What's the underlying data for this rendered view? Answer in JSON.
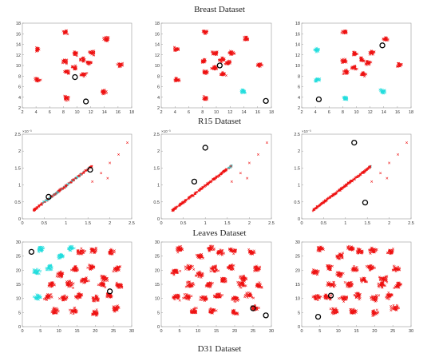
{
  "figure": {
    "row_titles": [
      "Breast Dataset",
      "R15 Dataset",
      "Leaves Dataset",
      "D31 Dataset"
    ],
    "colors": {
      "cluster_a": "#ee1111",
      "cluster_b": "#22dddd",
      "centroid": "#000000"
    }
  },
  "chart_data": [
    {
      "type": "scatter",
      "row": 0,
      "col": 0,
      "xlim": [
        2,
        18
      ],
      "ylim": [
        2,
        18
      ],
      "xticks": [
        2,
        4,
        6,
        8,
        10,
        12,
        14,
        16,
        18
      ],
      "yticks": [
        2,
        4,
        6,
        8,
        10,
        12,
        14,
        16,
        18
      ],
      "clusters": [
        {
          "x": 4.2,
          "y": 13,
          "color": "red"
        },
        {
          "x": 8.3,
          "y": 16.3,
          "color": "red"
        },
        {
          "x": 14.3,
          "y": 15,
          "color": "red"
        },
        {
          "x": 4.2,
          "y": 7.3,
          "color": "red"
        },
        {
          "x": 8.4,
          "y": 3.8,
          "color": "red"
        },
        {
          "x": 13.9,
          "y": 5.1,
          "color": "red"
        },
        {
          "x": 16.3,
          "y": 10.1,
          "color": "red"
        },
        {
          "x": 8.2,
          "y": 10.8,
          "color": "red"
        },
        {
          "x": 9.8,
          "y": 12.3,
          "color": "red"
        },
        {
          "x": 11.7,
          "y": 10.5,
          "color": "red"
        },
        {
          "x": 11,
          "y": 8.3,
          "color": "red"
        },
        {
          "x": 8.5,
          "y": 8.8,
          "color": "red"
        },
        {
          "x": 10.8,
          "y": 11.1,
          "color": "red"
        },
        {
          "x": 9.7,
          "y": 9.6,
          "color": "red"
        },
        {
          "x": 12.2,
          "y": 12.4,
          "color": "red"
        }
      ],
      "centroids": [
        {
          "x": 9.7,
          "y": 7.8
        },
        {
          "x": 11.3,
          "y": 3.2
        }
      ]
    },
    {
      "type": "scatter",
      "row": 0,
      "col": 1,
      "xlim": [
        2,
        18
      ],
      "ylim": [
        2,
        18
      ],
      "xticks": [
        2,
        4,
        6,
        8,
        10,
        12,
        14,
        16,
        18
      ],
      "yticks": [
        2,
        4,
        6,
        8,
        10,
        12,
        14,
        16,
        18
      ],
      "clusters": [
        {
          "x": 4.2,
          "y": 13,
          "color": "red"
        },
        {
          "x": 8.3,
          "y": 16.3,
          "color": "red"
        },
        {
          "x": 14.3,
          "y": 15,
          "color": "red"
        },
        {
          "x": 4.2,
          "y": 7.3,
          "color": "red"
        },
        {
          "x": 8.4,
          "y": 3.8,
          "color": "red"
        },
        {
          "x": 13.9,
          "y": 5.1,
          "color": "cyan"
        },
        {
          "x": 16.3,
          "y": 10.1,
          "color": "red"
        },
        {
          "x": 8.2,
          "y": 10.8,
          "color": "red"
        },
        {
          "x": 9.8,
          "y": 12.3,
          "color": "red"
        },
        {
          "x": 11.7,
          "y": 10.5,
          "color": "red"
        },
        {
          "x": 11,
          "y": 8.3,
          "color": "red"
        },
        {
          "x": 8.5,
          "y": 8.8,
          "color": "red"
        },
        {
          "x": 10.8,
          "y": 11.1,
          "color": "red"
        },
        {
          "x": 9.7,
          "y": 9.6,
          "color": "red"
        },
        {
          "x": 12.2,
          "y": 12.4,
          "color": "red"
        }
      ],
      "centroids": [
        {
          "x": 10.5,
          "y": 10
        },
        {
          "x": 17.2,
          "y": 3.3
        }
      ]
    },
    {
      "type": "scatter",
      "row": 0,
      "col": 2,
      "xlim": [
        2,
        18
      ],
      "ylim": [
        2,
        18
      ],
      "xticks": [
        2,
        4,
        6,
        8,
        10,
        12,
        14,
        16,
        18
      ],
      "yticks": [
        2,
        4,
        6,
        8,
        10,
        12,
        14,
        16,
        18
      ],
      "clusters": [
        {
          "x": 4.2,
          "y": 13,
          "color": "cyan"
        },
        {
          "x": 8.3,
          "y": 16.3,
          "color": "red"
        },
        {
          "x": 14.3,
          "y": 15,
          "color": "red"
        },
        {
          "x": 4.2,
          "y": 7.3,
          "color": "cyan"
        },
        {
          "x": 8.4,
          "y": 3.8,
          "color": "cyan"
        },
        {
          "x": 13.9,
          "y": 5.1,
          "color": "cyan"
        },
        {
          "x": 16.3,
          "y": 10.1,
          "color": "red"
        },
        {
          "x": 8.2,
          "y": 10.8,
          "color": "red"
        },
        {
          "x": 9.8,
          "y": 12.3,
          "color": "red"
        },
        {
          "x": 11.7,
          "y": 10.5,
          "color": "red"
        },
        {
          "x": 11,
          "y": 8.3,
          "color": "red"
        },
        {
          "x": 8.5,
          "y": 8.8,
          "color": "red"
        },
        {
          "x": 10.8,
          "y": 11.1,
          "color": "red"
        },
        {
          "x": 9.7,
          "y": 9.6,
          "color": "red"
        },
        {
          "x": 12.2,
          "y": 12.4,
          "color": "red"
        }
      ],
      "centroids": [
        {
          "x": 13.8,
          "y": 13.8
        },
        {
          "x": 4.5,
          "y": 3.6
        }
      ]
    },
    {
      "type": "scatter",
      "row": 1,
      "col": 0,
      "xlim": [
        0,
        2.5
      ],
      "ylim": [
        0,
        2.5
      ],
      "xticks": [
        0,
        0.5,
        1,
        1.5,
        2,
        2.5
      ],
      "yticks": [
        0,
        0.5,
        1,
        1.5,
        2,
        2.5
      ],
      "y_exponent": "×10⁻³",
      "diagonal": {
        "x0": 0.25,
        "x1": 1.6,
        "slope": 0.98,
        "color": "red"
      },
      "cyan_band": {
        "x0": 0.45,
        "x1": 1.55
      },
      "outliers": [
        {
          "x": 1.6,
          "y": 1.1
        },
        {
          "x": 1.8,
          "y": 1.35
        },
        {
          "x": 2.0,
          "y": 1.65
        },
        {
          "x": 2.2,
          "y": 1.9
        },
        {
          "x": 2.4,
          "y": 2.25
        },
        {
          "x": 1.95,
          "y": 1.2
        }
      ],
      "centroids": [
        {
          "x": 0.6,
          "y": 0.65
        },
        {
          "x": 1.55,
          "y": 1.45
        }
      ]
    },
    {
      "type": "scatter",
      "row": 1,
      "col": 1,
      "xlim": [
        0,
        2.5
      ],
      "ylim": [
        0,
        2.5
      ],
      "xticks": [
        0,
        0.5,
        1,
        1.5,
        2,
        2.5
      ],
      "yticks": [
        0,
        0.5,
        1,
        1.5,
        2,
        2.5
      ],
      "y_exponent": "×10⁻³",
      "diagonal": {
        "x0": 0.25,
        "x1": 1.6,
        "slope": 0.98,
        "color": "red"
      },
      "cyan_band": {
        "x0": 1.5,
        "x1": 1.62
      },
      "outliers": [
        {
          "x": 1.6,
          "y": 1.1
        },
        {
          "x": 1.8,
          "y": 1.35
        },
        {
          "x": 2.0,
          "y": 1.65
        },
        {
          "x": 2.2,
          "y": 1.9
        },
        {
          "x": 2.4,
          "y": 2.25
        },
        {
          "x": 1.95,
          "y": 1.2
        }
      ],
      "centroids": [
        {
          "x": 1.0,
          "y": 2.1
        },
        {
          "x": 0.75,
          "y": 1.1
        }
      ]
    },
    {
      "type": "scatter",
      "row": 1,
      "col": 2,
      "xlim": [
        0,
        2.5
      ],
      "ylim": [
        0,
        2.5
      ],
      "xticks": [
        0,
        0.5,
        1,
        1.5,
        2,
        2.5
      ],
      "yticks": [
        0,
        0.5,
        1,
        1.5,
        2,
        2.5
      ],
      "y_exponent": "×10⁻³",
      "diagonal": {
        "x0": 0.25,
        "x1": 1.6,
        "slope": 0.98,
        "color": "red"
      },
      "cyan_band": {
        "x0": 1.5,
        "x1": 1.62
      },
      "outliers": [
        {
          "x": 1.6,
          "y": 1.1
        },
        {
          "x": 1.8,
          "y": 1.35
        },
        {
          "x": 2.0,
          "y": 1.65
        },
        {
          "x": 2.2,
          "y": 1.9
        },
        {
          "x": 2.4,
          "y": 2.25
        },
        {
          "x": 1.95,
          "y": 1.2
        }
      ],
      "centroids": [
        {
          "x": 1.2,
          "y": 2.25
        },
        {
          "x": 1.45,
          "y": 0.48
        }
      ]
    },
    {
      "type": "scatter",
      "row": 2,
      "col": 0,
      "xlim": [
        0,
        30
      ],
      "ylim": [
        0,
        30
      ],
      "xticks": [
        0,
        5,
        10,
        15,
        20,
        25,
        30
      ],
      "yticks": [
        0,
        5,
        10,
        15,
        20,
        25,
        30
      ],
      "clusters": [
        {
          "x": 5,
          "y": 27.5,
          "color": "cyan"
        },
        {
          "x": 10.5,
          "y": 25,
          "color": "cyan"
        },
        {
          "x": 13.5,
          "y": 27.8,
          "color": "cyan"
        },
        {
          "x": 7.5,
          "y": 21,
          "color": "cyan"
        },
        {
          "x": 3.8,
          "y": 19.5,
          "color": "cyan"
        },
        {
          "x": 4.2,
          "y": 10.5,
          "color": "cyan"
        },
        {
          "x": 16,
          "y": 26.5,
          "color": "red"
        },
        {
          "x": 19.5,
          "y": 27,
          "color": "red"
        },
        {
          "x": 24.5,
          "y": 26.5,
          "color": "red"
        },
        {
          "x": 10.5,
          "y": 18.5,
          "color": "red"
        },
        {
          "x": 14.5,
          "y": 20.5,
          "color": "red"
        },
        {
          "x": 19,
          "y": 21,
          "color": "red"
        },
        {
          "x": 26,
          "y": 20.5,
          "color": "red"
        },
        {
          "x": 8,
          "y": 15,
          "color": "red"
        },
        {
          "x": 13,
          "y": 15,
          "color": "red"
        },
        {
          "x": 17,
          "y": 16.5,
          "color": "red"
        },
        {
          "x": 22.5,
          "y": 17,
          "color": "red"
        },
        {
          "x": 26.5,
          "y": 14.5,
          "color": "red"
        },
        {
          "x": 7,
          "y": 10.5,
          "color": "red"
        },
        {
          "x": 11.5,
          "y": 10,
          "color": "red"
        },
        {
          "x": 15.5,
          "y": 11,
          "color": "red"
        },
        {
          "x": 20,
          "y": 10,
          "color": "red"
        },
        {
          "x": 24,
          "y": 11,
          "color": "red"
        },
        {
          "x": 9,
          "y": 5.5,
          "color": "red"
        },
        {
          "x": 14,
          "y": 5.5,
          "color": "red"
        },
        {
          "x": 20,
          "y": 5,
          "color": "red"
        },
        {
          "x": 25.5,
          "y": 6.5,
          "color": "red"
        },
        {
          "x": 22,
          "y": 15,
          "color": "red"
        }
      ],
      "centroids": [
        {
          "x": 2.5,
          "y": 26.5
        },
        {
          "x": 24,
          "y": 12.5
        }
      ]
    },
    {
      "type": "scatter",
      "row": 2,
      "col": 1,
      "xlim": [
        0,
        30
      ],
      "ylim": [
        0,
        30
      ],
      "xticks": [
        0,
        5,
        10,
        15,
        20,
        25,
        30
      ],
      "yticks": [
        0,
        5,
        10,
        15,
        20,
        25,
        30
      ],
      "clusters": [
        {
          "x": 5,
          "y": 27.5,
          "color": "red"
        },
        {
          "x": 10.5,
          "y": 25,
          "color": "red"
        },
        {
          "x": 13.5,
          "y": 27.8,
          "color": "red"
        },
        {
          "x": 7.5,
          "y": 21,
          "color": "red"
        },
        {
          "x": 3.8,
          "y": 19.5,
          "color": "red"
        },
        {
          "x": 4.2,
          "y": 10.5,
          "color": "red"
        },
        {
          "x": 16,
          "y": 26.5,
          "color": "red"
        },
        {
          "x": 19.5,
          "y": 27,
          "color": "red"
        },
        {
          "x": 24.5,
          "y": 26.5,
          "color": "red"
        },
        {
          "x": 10.5,
          "y": 18.5,
          "color": "red"
        },
        {
          "x": 14.5,
          "y": 20.5,
          "color": "red"
        },
        {
          "x": 19,
          "y": 21,
          "color": "red"
        },
        {
          "x": 26,
          "y": 20.5,
          "color": "red"
        },
        {
          "x": 8,
          "y": 15,
          "color": "red"
        },
        {
          "x": 13,
          "y": 15,
          "color": "red"
        },
        {
          "x": 17,
          "y": 16.5,
          "color": "red"
        },
        {
          "x": 22.5,
          "y": 17,
          "color": "red"
        },
        {
          "x": 26.5,
          "y": 14.5,
          "color": "red"
        },
        {
          "x": 7,
          "y": 10.5,
          "color": "red"
        },
        {
          "x": 11.5,
          "y": 10,
          "color": "red"
        },
        {
          "x": 15.5,
          "y": 11,
          "color": "red"
        },
        {
          "x": 20,
          "y": 10,
          "color": "red"
        },
        {
          "x": 24,
          "y": 11,
          "color": "red"
        },
        {
          "x": 9,
          "y": 5.5,
          "color": "red"
        },
        {
          "x": 14,
          "y": 5.5,
          "color": "red"
        },
        {
          "x": 20,
          "y": 5,
          "color": "red"
        },
        {
          "x": 25.5,
          "y": 6.5,
          "color": "red"
        },
        {
          "x": 22,
          "y": 15,
          "color": "red"
        }
      ],
      "centroids": [
        {
          "x": 25,
          "y": 6.5
        },
        {
          "x": 28.5,
          "y": 4
        }
      ]
    },
    {
      "type": "scatter",
      "row": 2,
      "col": 2,
      "xlim": [
        0,
        30
      ],
      "ylim": [
        0,
        30
      ],
      "xticks": [
        0,
        5,
        10,
        15,
        20,
        25,
        30
      ],
      "yticks": [
        0,
        5,
        10,
        15,
        20,
        25,
        30
      ],
      "clusters": [
        {
          "x": 5,
          "y": 27.5,
          "color": "red"
        },
        {
          "x": 10.5,
          "y": 25,
          "color": "red"
        },
        {
          "x": 13.5,
          "y": 27.8,
          "color": "red"
        },
        {
          "x": 7.5,
          "y": 21,
          "color": "red"
        },
        {
          "x": 3.8,
          "y": 19.5,
          "color": "red"
        },
        {
          "x": 4.2,
          "y": 10.5,
          "color": "red"
        },
        {
          "x": 16,
          "y": 26.5,
          "color": "red"
        },
        {
          "x": 19.5,
          "y": 27,
          "color": "red"
        },
        {
          "x": 24.5,
          "y": 26.5,
          "color": "red"
        },
        {
          "x": 10.5,
          "y": 18.5,
          "color": "red"
        },
        {
          "x": 14.5,
          "y": 20.5,
          "color": "red"
        },
        {
          "x": 19,
          "y": 21,
          "color": "red"
        },
        {
          "x": 26,
          "y": 20.5,
          "color": "red"
        },
        {
          "x": 8,
          "y": 15,
          "color": "red"
        },
        {
          "x": 13,
          "y": 15,
          "color": "red"
        },
        {
          "x": 17,
          "y": 16.5,
          "color": "red"
        },
        {
          "x": 22.5,
          "y": 17,
          "color": "red"
        },
        {
          "x": 26.5,
          "y": 14.5,
          "color": "red"
        },
        {
          "x": 7,
          "y": 10.5,
          "color": "red"
        },
        {
          "x": 11.5,
          "y": 10,
          "color": "red"
        },
        {
          "x": 15.5,
          "y": 11,
          "color": "red"
        },
        {
          "x": 20,
          "y": 10,
          "color": "red"
        },
        {
          "x": 24,
          "y": 11,
          "color": "red"
        },
        {
          "x": 9,
          "y": 5.5,
          "color": "red"
        },
        {
          "x": 14,
          "y": 5.5,
          "color": "red"
        },
        {
          "x": 20,
          "y": 5,
          "color": "red"
        },
        {
          "x": 25.5,
          "y": 6.5,
          "color": "red"
        },
        {
          "x": 22,
          "y": 15,
          "color": "red"
        }
      ],
      "centroids": [
        {
          "x": 8,
          "y": 11
        },
        {
          "x": 4.5,
          "y": 3.5
        }
      ]
    }
  ]
}
